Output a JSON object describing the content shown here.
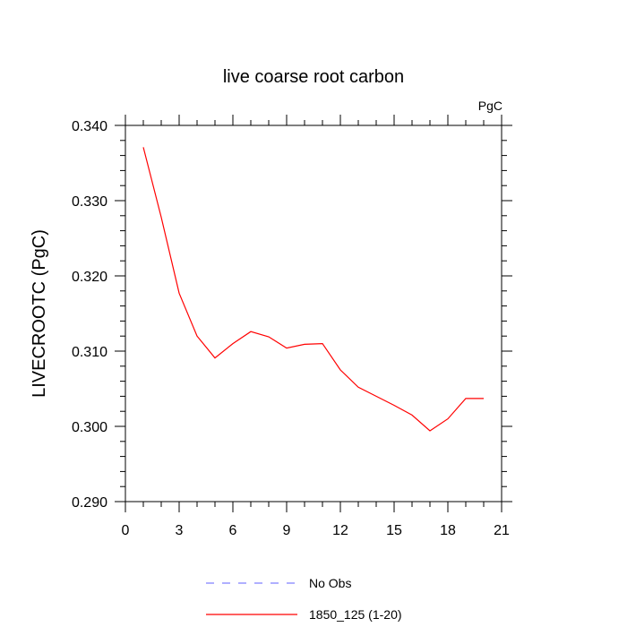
{
  "chart_data": {
    "type": "line",
    "title": "live coarse root carbon",
    "units_label": "PgC",
    "ylabel": "LIVECROOTC  (PgC)",
    "xlabel": "",
    "xlim": [
      0,
      21
    ],
    "ylim": [
      0.29,
      0.34
    ],
    "x_ticks": [
      0,
      3,
      6,
      9,
      12,
      15,
      18,
      21
    ],
    "y_ticks": [
      0.29,
      0.3,
      0.31,
      0.32,
      0.33,
      0.34
    ],
    "y_tick_labels": [
      "0.290",
      "0.300",
      "0.310",
      "0.320",
      "0.330",
      "0.340"
    ],
    "x_tick_labels": [
      "0",
      "3",
      "6",
      "9",
      "12",
      "15",
      "18",
      "21"
    ],
    "grid": false,
    "legend_position": "bottom",
    "series": [
      {
        "name": "No Obs",
        "color": "#8080ff",
        "dash": "dashed",
        "x": [],
        "y": []
      },
      {
        "name": "1850_125 (1-20)",
        "color": "#ff0000",
        "dash": "solid",
        "x": [
          1,
          2,
          3,
          4,
          5,
          6,
          7,
          8,
          9,
          10,
          11,
          12,
          13,
          14,
          15,
          16,
          17,
          18,
          19,
          20
        ],
        "y": [
          0.3371,
          0.3278,
          0.3177,
          0.312,
          0.3091,
          0.311,
          0.3126,
          0.3119,
          0.3104,
          0.3109,
          0.311,
          0.3075,
          0.3052,
          0.304,
          0.3028,
          0.3015,
          0.2994,
          0.301,
          0.3037,
          0.3037
        ]
      }
    ]
  }
}
